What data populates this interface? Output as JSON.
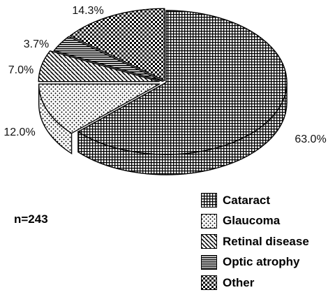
{
  "chart_data": {
    "type": "pie",
    "style": "3d-exploded",
    "categories": [
      "Cataract",
      "Glaucoma",
      "Retinal disease",
      "Optic atrophy",
      "Other"
    ],
    "values": [
      63.0,
      12.0,
      7.0,
      3.7,
      14.3
    ],
    "data_labels": [
      "63.0%",
      "12.0%",
      "7.0%",
      "3.7%",
      "14.3%"
    ],
    "patterns": [
      "grid",
      "dots",
      "diagonal-hatch",
      "horizontal-lines",
      "checker"
    ],
    "annotation": "n=243",
    "legend_position": "bottom-right",
    "colors": {
      "ink": "#000000",
      "background": "#ffffff"
    }
  }
}
